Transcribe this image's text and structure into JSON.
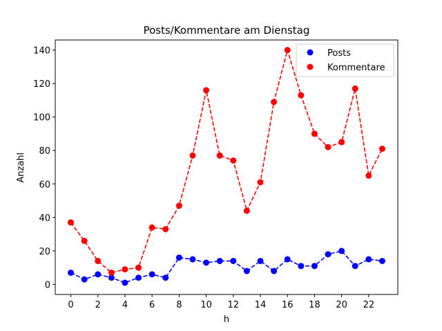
{
  "chart_data": {
    "type": "line",
    "title": "Posts/Kommentare am Dienstag",
    "xlabel": "h",
    "ylabel": "Anzahl",
    "x": [
      0,
      1,
      2,
      3,
      4,
      5,
      6,
      7,
      8,
      9,
      10,
      11,
      12,
      13,
      14,
      15,
      16,
      17,
      18,
      19,
      20,
      21,
      22,
      23
    ],
    "xlim": [
      -1.15,
      24.15
    ],
    "ylim": [
      -6,
      146
    ],
    "xticks": [
      0,
      2,
      4,
      6,
      8,
      10,
      12,
      14,
      16,
      18,
      20,
      22
    ],
    "yticks": [
      0,
      20,
      40,
      60,
      80,
      100,
      120,
      140
    ],
    "grid": false,
    "legend_position": "top-right",
    "series": [
      {
        "name": "Posts",
        "color": "#0000ff",
        "line_style": "dashed",
        "marker": "circle",
        "values": [
          7,
          3,
          6,
          4,
          1,
          4,
          6,
          4,
          16,
          15,
          13,
          14,
          14,
          8,
          14,
          8,
          15,
          11,
          11,
          18,
          20,
          11,
          15,
          14
        ]
      },
      {
        "name": "Kommentare",
        "color": "#ff0000",
        "line_style": "dashed",
        "marker": "circle",
        "values": [
          37,
          26,
          14,
          7,
          9,
          10,
          34,
          33,
          47,
          77,
          116,
          77,
          74,
          44,
          61,
          109,
          140,
          113,
          90,
          82,
          85,
          117,
          65,
          81
        ]
      }
    ]
  }
}
